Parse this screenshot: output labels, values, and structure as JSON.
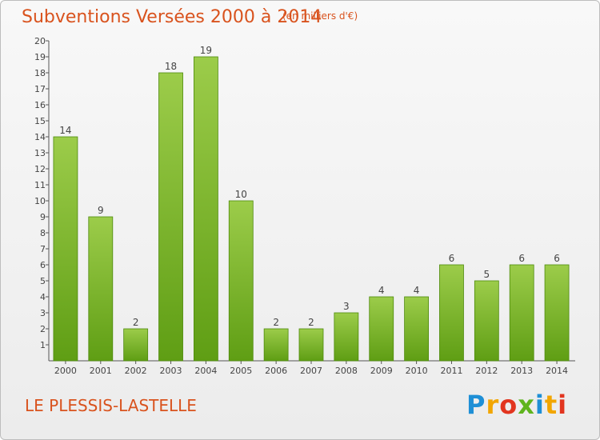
{
  "chart_data": {
    "type": "bar",
    "title": "Subventions Versées 2000 à 2014",
    "subtitle": "(en milliers d'€)",
    "categories": [
      "2000",
      "2001",
      "2002",
      "2003",
      "2004",
      "2005",
      "2006",
      "2007",
      "2008",
      "2009",
      "2010",
      "2011",
      "2012",
      "2013",
      "2014"
    ],
    "values": [
      14,
      9,
      2,
      18,
      19,
      10,
      2,
      2,
      3,
      4,
      4,
      6,
      5,
      6,
      6
    ],
    "ylim": [
      1,
      20
    ],
    "yticks": [
      1,
      2,
      3,
      4,
      5,
      6,
      7,
      8,
      9,
      10,
      11,
      12,
      13,
      14,
      15,
      16,
      17,
      18,
      19,
      20
    ],
    "grid": false,
    "colors": {
      "bar_top": "#9ccc4a",
      "bar_bottom": "#5f9e14",
      "bar_edge": "#4e8a0c",
      "text_accent": "#d9531e"
    }
  },
  "commune": "LE PLESSIS-LASTELLE",
  "logo": {
    "text": "Proxiti"
  }
}
